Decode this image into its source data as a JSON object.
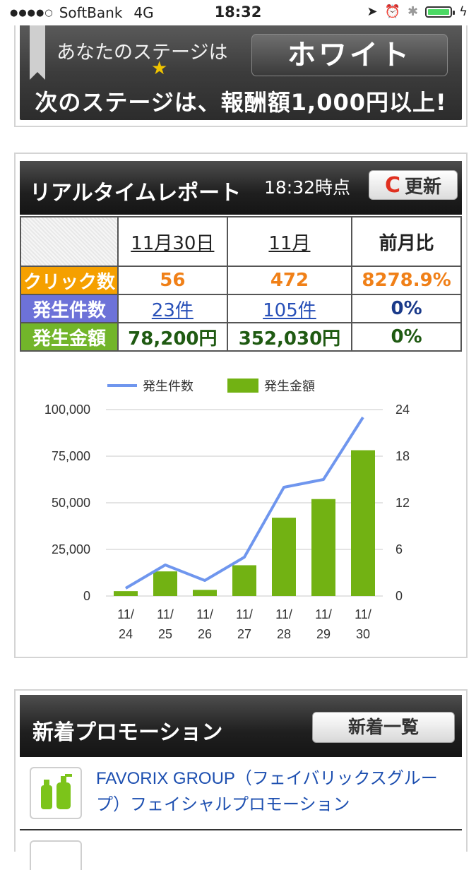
{
  "status": {
    "carrier": "SoftBank",
    "network": "4G",
    "time": "18:32",
    "battery_pct": 100
  },
  "stage": {
    "label": "あなたのステージは",
    "name": "ホワイト",
    "next": "次のステージは、報酬額1,000円以上!"
  },
  "report": {
    "title": "リアルタイムレポート",
    "as_of": "18:32時点",
    "refresh_label": "更新",
    "columns": [
      "11月30日",
      "11月",
      "前月比"
    ],
    "rows": [
      {
        "label": "クリック数",
        "day": "56",
        "month": "472",
        "ratio": "8278.9%"
      },
      {
        "label": "発生件数",
        "day": "23件",
        "month": "105件",
        "ratio": "0%"
      },
      {
        "label": "発生金額",
        "day": "78,200円",
        "month": "352,030円",
        "ratio": "0%"
      }
    ]
  },
  "chart_data": {
    "type": "bar",
    "categories": [
      "11/24",
      "11/25",
      "11/26",
      "11/27",
      "11/28",
      "11/29",
      "11/30"
    ],
    "category_lines": [
      [
        "11/",
        "24"
      ],
      [
        "11/",
        "25"
      ],
      [
        "11/",
        "26"
      ],
      [
        "11/",
        "27"
      ],
      [
        "11/",
        "28"
      ],
      [
        "11/",
        "29"
      ],
      [
        "11/",
        "30"
      ]
    ],
    "series": [
      {
        "name": "発生金額",
        "type": "bar",
        "axis": "left",
        "color": "#72b213",
        "values": [
          2600,
          13200,
          3300,
          16500,
          42000,
          52000,
          78200
        ]
      },
      {
        "name": "発生件数",
        "type": "line",
        "axis": "right",
        "color": "#6f96ee",
        "values": [
          1,
          4,
          2,
          5,
          14,
          15,
          23
        ]
      }
    ],
    "y_left": {
      "ticks": [
        "0",
        "25,000",
        "50,000",
        "75,000",
        "100,000"
      ],
      "lim": [
        0,
        100000
      ]
    },
    "y_right": {
      "ticks": [
        "0",
        "6",
        "12",
        "18",
        "24"
      ],
      "lim": [
        0,
        24
      ]
    },
    "legend": "top-center",
    "grid": true
  },
  "promotions": {
    "title": "新着プロモーション",
    "list_button": "新着一覧",
    "items": [
      {
        "icon": "bottle-icon",
        "text": "FAVORIX GROUP（フェイバリックスグループ）フェイシャルプロモーション"
      }
    ]
  }
}
